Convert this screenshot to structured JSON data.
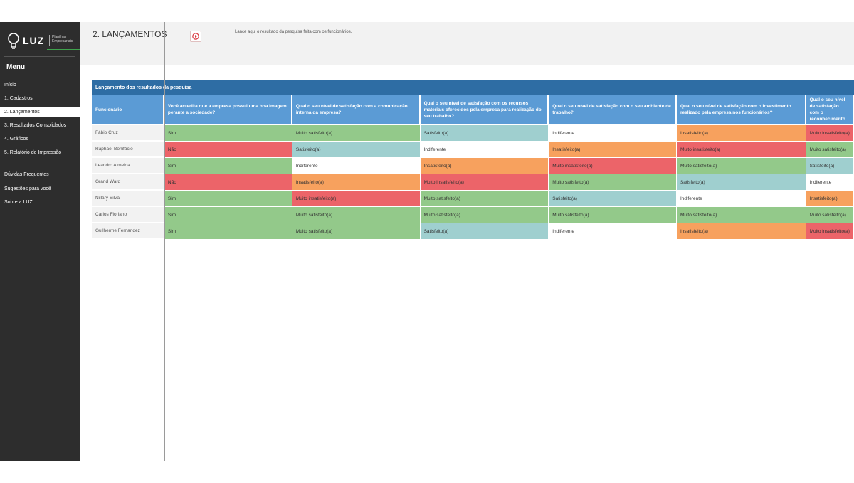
{
  "app": {
    "logo_text": "LUZ",
    "logo_subtitle": "Planilhas Empresariais",
    "page_title": "2. LANÇAMENTOS",
    "instruction": "Lance aqui o resultado da pesquisa feita com os funcionários."
  },
  "sidebar": {
    "menu_title": "Menu",
    "items": [
      {
        "label": "Início"
      },
      {
        "label": "1. Cadastros"
      },
      {
        "label": "2. Lançamentos",
        "active": true
      },
      {
        "label": "3. Resultados Consolidados"
      },
      {
        "label": "4. Gráficos"
      },
      {
        "label": "5. Relatório de Impressão"
      }
    ],
    "secondary_items": [
      {
        "label": "Dúvidas Frequentes"
      },
      {
        "label": "Sugestões para você"
      },
      {
        "label": "Sobre a LUZ"
      }
    ]
  },
  "table": {
    "title": "Lançamento dos resultados da pesquisa",
    "columns": [
      "Funcionário",
      "Você acredita que a empresa possui uma boa imagem perante a sociedade?",
      "Qual o seu nível de satisfação com a comunicação interna da empresa?",
      "Qual o seu nível de satisfação com os recursos materiais oferecidos pela empresa para realização do seu trabalho?",
      "Qual o seu nível de satisfação com o seu ambiente de trabalho?",
      "Qual o seu nível de satisfação com o investimento realizado pela empresa nos funcionários?",
      "Qual o seu nível de satisfação com o reconhecimento"
    ],
    "rows": [
      {
        "name": "Fábio Cruz",
        "answers": [
          "Sim",
          "Muito satisfeito(a)",
          "Satisfeito(a)",
          "Indiferente",
          "Insatisfeito(a)",
          "Muito insatisfeito(a)"
        ]
      },
      {
        "name": "Raphael Bonifácio",
        "answers": [
          "Não",
          "Satisfeito(a)",
          "Indiferente",
          "Insatisfeito(a)",
          "Muito insatisfeito(a)",
          "Muito satisfeito(a)"
        ]
      },
      {
        "name": "Leandro Almeida",
        "answers": [
          "Sim",
          "Indiferente",
          "Insatisfeito(a)",
          "Muito insatisfeito(a)",
          "Muito satisfeito(a)",
          "Satisfeito(a)"
        ]
      },
      {
        "name": "Grand Ward",
        "answers": [
          "Não",
          "Insatisfeito(a)",
          "Muito insatisfeito(a)",
          "Muito satisfeito(a)",
          "Satisfeito(a)",
          "Indiferente"
        ]
      },
      {
        "name": "Nillary Silva",
        "answers": [
          "Sim",
          "Muito insatisfeito(a)",
          "Muito satisfeito(a)",
          "Satisfeito(a)",
          "Indiferente",
          "Insatisfeito(a)"
        ]
      },
      {
        "name": "Carlos Floriano",
        "answers": [
          "Sim",
          "Muito satisfeito(a)",
          "Muito satisfeito(a)",
          "Muito satisfeito(a)",
          "Muito satisfeito(a)",
          "Muito satisfeito(a)"
        ]
      },
      {
        "name": "Guilherme Fernandez",
        "answers": [
          "Sim",
          "Muito satisfeito(a)",
          "Satisfeito(a)",
          "Indiferente",
          "Insatisfeito(a)",
          "Muito insatisfeito(a)"
        ]
      }
    ]
  },
  "colors": {
    "sidebar_bg": "#2d2d2d",
    "table_title_bg": "#2e6da4",
    "header_bg": "#5b9bd5",
    "Sim": "#93c98a",
    "Não": "#ec6469",
    "Muito satisfeito(a)": "#93c98a",
    "Satisfeito(a)": "#9fcfcf",
    "Indiferente": "#ffffff",
    "Insatisfeito(a)": "#f7a15e",
    "Muito insatisfeito(a)": "#ec6469"
  },
  "icons": {
    "play": "play-circle-icon",
    "logo": "lightbulb-icon"
  }
}
